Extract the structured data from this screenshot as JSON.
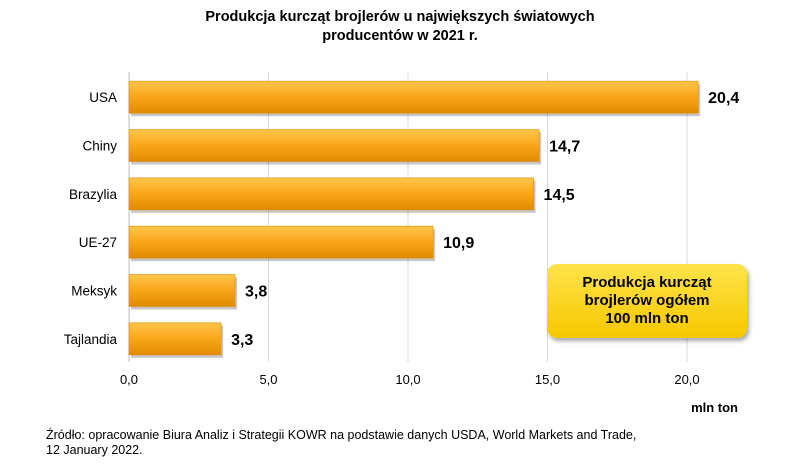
{
  "title": {
    "line1": "Produkcja kurcząt brojlerów u największych światowych",
    "line2": "producentów w 2021 r."
  },
  "callout": {
    "line1": "Produkcja kurcząt",
    "line2": "brojlerów ogółem",
    "line3": "100 mln ton"
  },
  "source": {
    "line1": "Źródło: opracowanie Biura Analiz i Strategii KOWR na podstawie danych USDA, World Markets and Trade,",
    "line2": "12 January 2022."
  },
  "colors": {
    "bar": "#f9a51a",
    "bar_light": "#ffc64a",
    "bar_dark": "#e08a00",
    "grid": "#d9d9d9"
  },
  "chart_data": {
    "type": "bar",
    "orientation": "horizontal",
    "categories": [
      "USA",
      "Chiny",
      "Brazylia",
      "UE-27",
      "Meksyk",
      "Tajlandia"
    ],
    "values": [
      20.4,
      14.7,
      14.5,
      10.9,
      3.8,
      3.3
    ],
    "value_labels": [
      "20,4",
      "14,7",
      "14,5",
      "10,9",
      "3,8",
      "3,3"
    ],
    "xlim": [
      0,
      20
    ],
    "x_ticks": [
      0,
      5,
      10,
      15,
      20
    ],
    "x_tick_labels": [
      "0,0",
      "5,0",
      "10,0",
      "15,0",
      "20,0"
    ],
    "xlabel": "mln ton",
    "grid": true
  }
}
